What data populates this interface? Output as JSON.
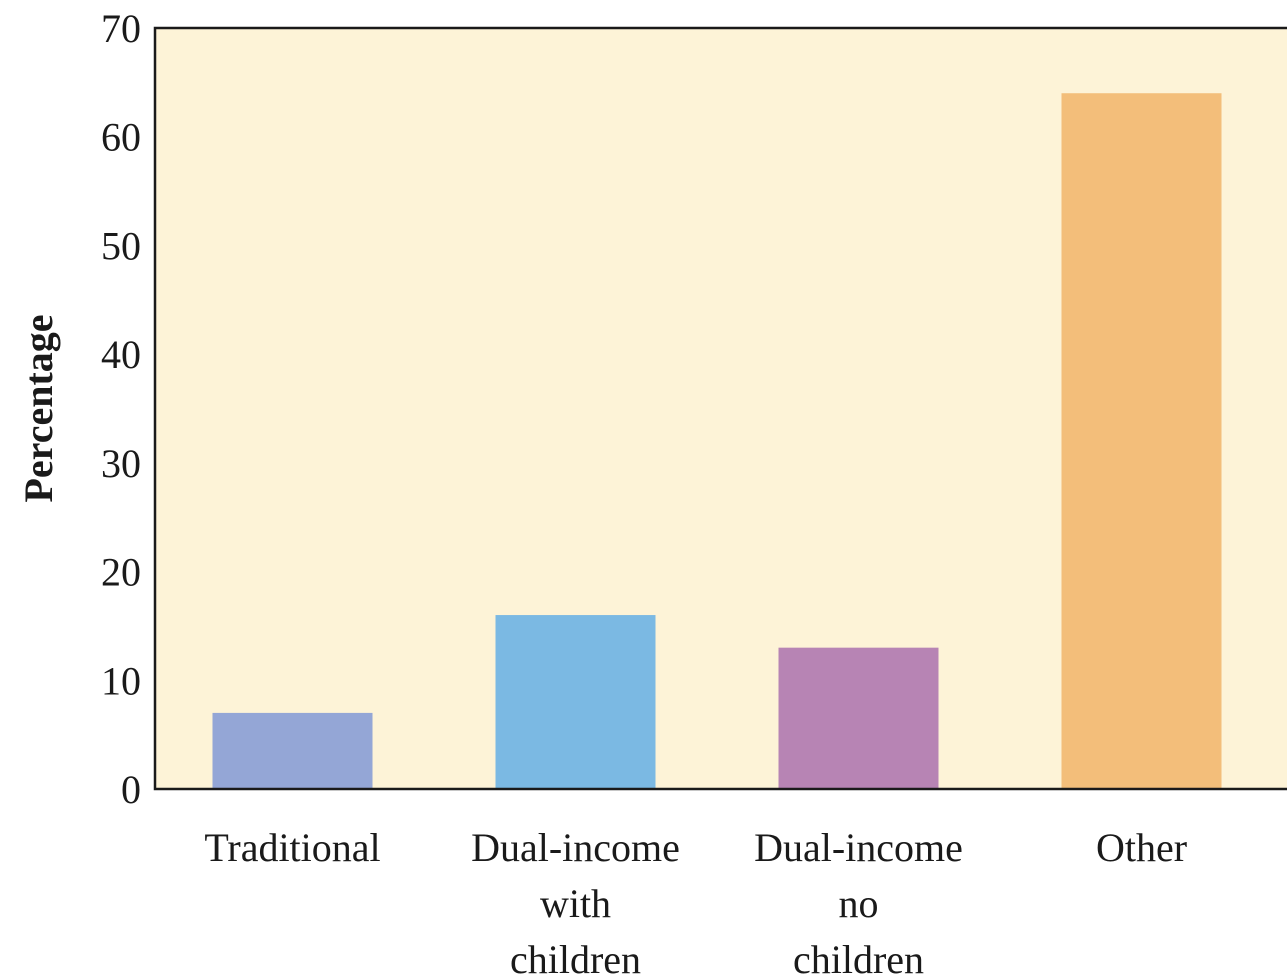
{
  "chart_data": {
    "type": "bar",
    "categories": [
      [
        "Traditional"
      ],
      [
        "Dual-income",
        "with",
        "children"
      ],
      [
        "Dual-income",
        "no",
        "children"
      ],
      [
        "Other"
      ]
    ],
    "values": [
      7,
      16,
      13,
      64
    ],
    "xlabel": "",
    "ylabel": "Percentage",
    "ylim": [
      0,
      70
    ],
    "yticks": [
      0,
      10,
      20,
      30,
      40,
      50,
      60,
      70
    ],
    "grid": false,
    "legend": "none",
    "colors": {
      "plot_background": "#fdf3d7",
      "bars": [
        "#94a6d6",
        "#7bb9e3",
        "#b784b4",
        "#f3be7a"
      ]
    }
  }
}
